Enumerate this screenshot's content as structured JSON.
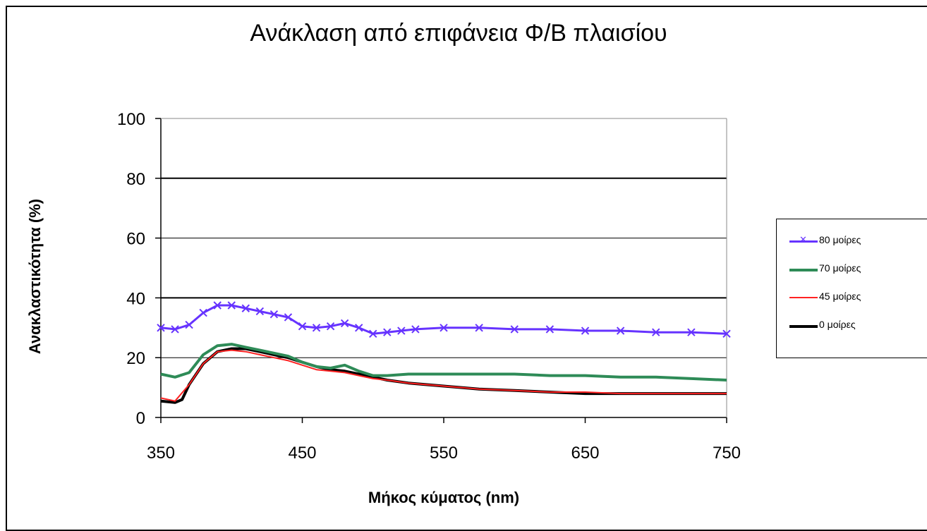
{
  "chart_data": {
    "type": "line",
    "title": "Ανάκλαση από επιφάνεια Φ/Β πλαισίου",
    "xlabel": "Μήκος κύματος (nm)",
    "ylabel": "Ανακλαστικότητα (%)",
    "xlim": [
      350,
      750
    ],
    "ylim": [
      0,
      100
    ],
    "xticks": [
      350,
      450,
      550,
      650,
      750
    ],
    "yticks": [
      0,
      20,
      40,
      60,
      80,
      100
    ],
    "grid": "horizontal",
    "legend_position": "right",
    "series": [
      {
        "name": "80 μοίρες",
        "color": "#6633ff",
        "marker": "x",
        "x": [
          350,
          360,
          370,
          380,
          390,
          400,
          410,
          420,
          430,
          440,
          450,
          460,
          470,
          480,
          490,
          500,
          510,
          520,
          530,
          550,
          575,
          600,
          625,
          650,
          675,
          700,
          725,
          750
        ],
        "y": [
          30,
          29.5,
          31,
          35,
          37.5,
          37.5,
          36.5,
          35.5,
          34.5,
          33.5,
          30.5,
          30,
          30.5,
          31.5,
          30,
          28,
          28.5,
          29,
          29.5,
          30,
          30,
          29.5,
          29.5,
          29,
          29,
          28.5,
          28.5,
          28
        ]
      },
      {
        "name": "70 μοίρες",
        "color": "#2e8b57",
        "marker": "",
        "x": [
          350,
          360,
          370,
          380,
          390,
          400,
          410,
          420,
          430,
          440,
          450,
          460,
          470,
          480,
          490,
          500,
          510,
          525,
          550,
          575,
          600,
          625,
          650,
          675,
          700,
          725,
          750
        ],
        "y": [
          14.5,
          13.5,
          15,
          21,
          24,
          24.5,
          23.5,
          22.5,
          21.5,
          20.5,
          18.5,
          17,
          16.5,
          17.5,
          15.5,
          14,
          14,
          14.5,
          14.5,
          14.5,
          14.5,
          14,
          14,
          13.5,
          13.5,
          13,
          12.5
        ]
      },
      {
        "name": "45 μοίρες",
        "color": "#ff2222",
        "marker": "",
        "x": [
          350,
          360,
          370,
          380,
          390,
          400,
          410,
          420,
          430,
          440,
          450,
          460,
          470,
          480,
          490,
          500,
          510,
          525,
          550,
          575,
          600,
          625,
          650,
          675,
          700,
          725,
          750
        ],
        "y": [
          6.5,
          5.5,
          11,
          18,
          22,
          22.5,
          22,
          21,
          20,
          19,
          17.5,
          16,
          15.5,
          15,
          14,
          13,
          12.5,
          11.5,
          10.5,
          9.5,
          9,
          8.5,
          8.5,
          8,
          8,
          8,
          8
        ]
      },
      {
        "name": "0 μοίρες",
        "color": "#000000",
        "marker": "",
        "x": [
          350,
          360,
          365,
          370,
          380,
          390,
          400,
          410,
          420,
          430,
          440,
          450,
          460,
          470,
          480,
          490,
          500,
          510,
          525,
          550,
          575,
          600,
          625,
          650,
          675,
          700,
          725,
          750
        ],
        "y": [
          5.5,
          5,
          6,
          11,
          18,
          22,
          23,
          23,
          22,
          21,
          20,
          18.5,
          17,
          16,
          15.5,
          14.5,
          13.5,
          12.5,
          11.5,
          10.5,
          9.5,
          9,
          8.5,
          8,
          8,
          8,
          8,
          8
        ]
      }
    ]
  }
}
